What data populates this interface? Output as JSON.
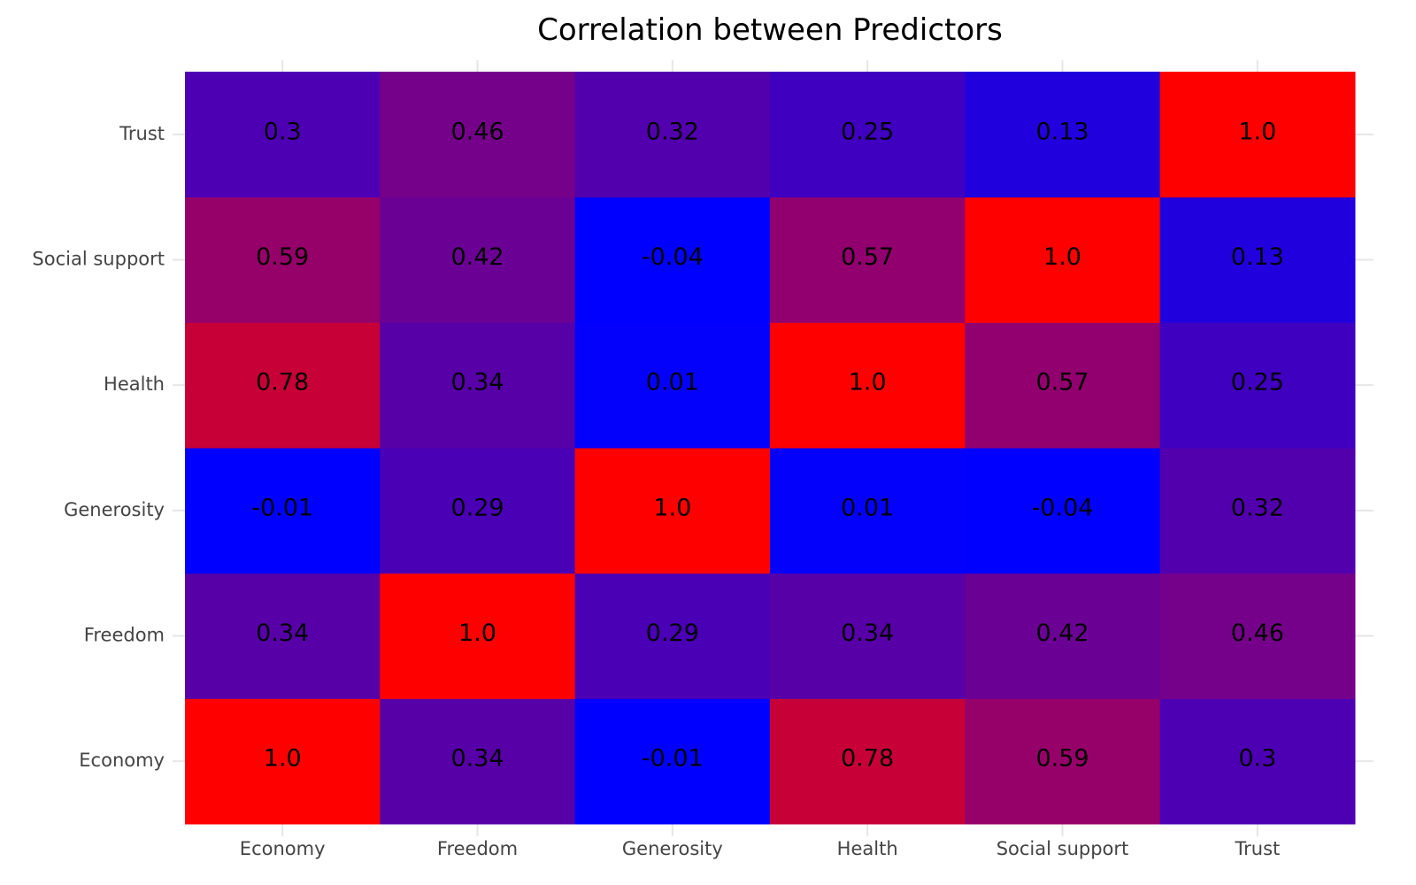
{
  "chart_data": {
    "type": "heatmap",
    "title": "Correlation between Predictors",
    "xlabel": "",
    "ylabel": "",
    "x_categories": [
      "Economy",
      "Freedom",
      "Generosity",
      "Health",
      "Social support",
      "Trust"
    ],
    "y_categories": [
      "Economy",
      "Freedom",
      "Generosity",
      "Health",
      "Social support",
      "Trust"
    ],
    "values": [
      [
        1.0,
        0.34,
        -0.01,
        0.78,
        0.59,
        0.3
      ],
      [
        0.34,
        1.0,
        0.29,
        0.34,
        0.42,
        0.46
      ],
      [
        -0.01,
        0.29,
        1.0,
        0.01,
        -0.04,
        0.32
      ],
      [
        0.78,
        0.34,
        0.01,
        1.0,
        0.57,
        0.25
      ],
      [
        0.59,
        0.42,
        -0.04,
        0.57,
        1.0,
        0.13
      ],
      [
        0.3,
        0.46,
        0.32,
        0.25,
        0.13,
        1.0
      ]
    ],
    "labels": [
      [
        "1.0",
        "0.34",
        "-0.01",
        "0.78",
        "0.59",
        "0.3"
      ],
      [
        "0.34",
        "1.0",
        "0.29",
        "0.34",
        "0.42",
        "0.46"
      ],
      [
        "-0.01",
        "0.29",
        "1.0",
        "0.01",
        "-0.04",
        "0.32"
      ],
      [
        "0.78",
        "0.34",
        "0.01",
        "1.0",
        "0.57",
        "0.25"
      ],
      [
        "0.59",
        "0.42",
        "-0.04",
        "0.57",
        "1.0",
        "0.13"
      ],
      [
        "0.3",
        "0.46",
        "0.32",
        "0.25",
        "0.13",
        "1.0"
      ]
    ],
    "color_scale": {
      "low": "#0000ff",
      "high": "#ff0000",
      "range": [
        0,
        1
      ]
    },
    "grid": true,
    "legend": "none"
  }
}
